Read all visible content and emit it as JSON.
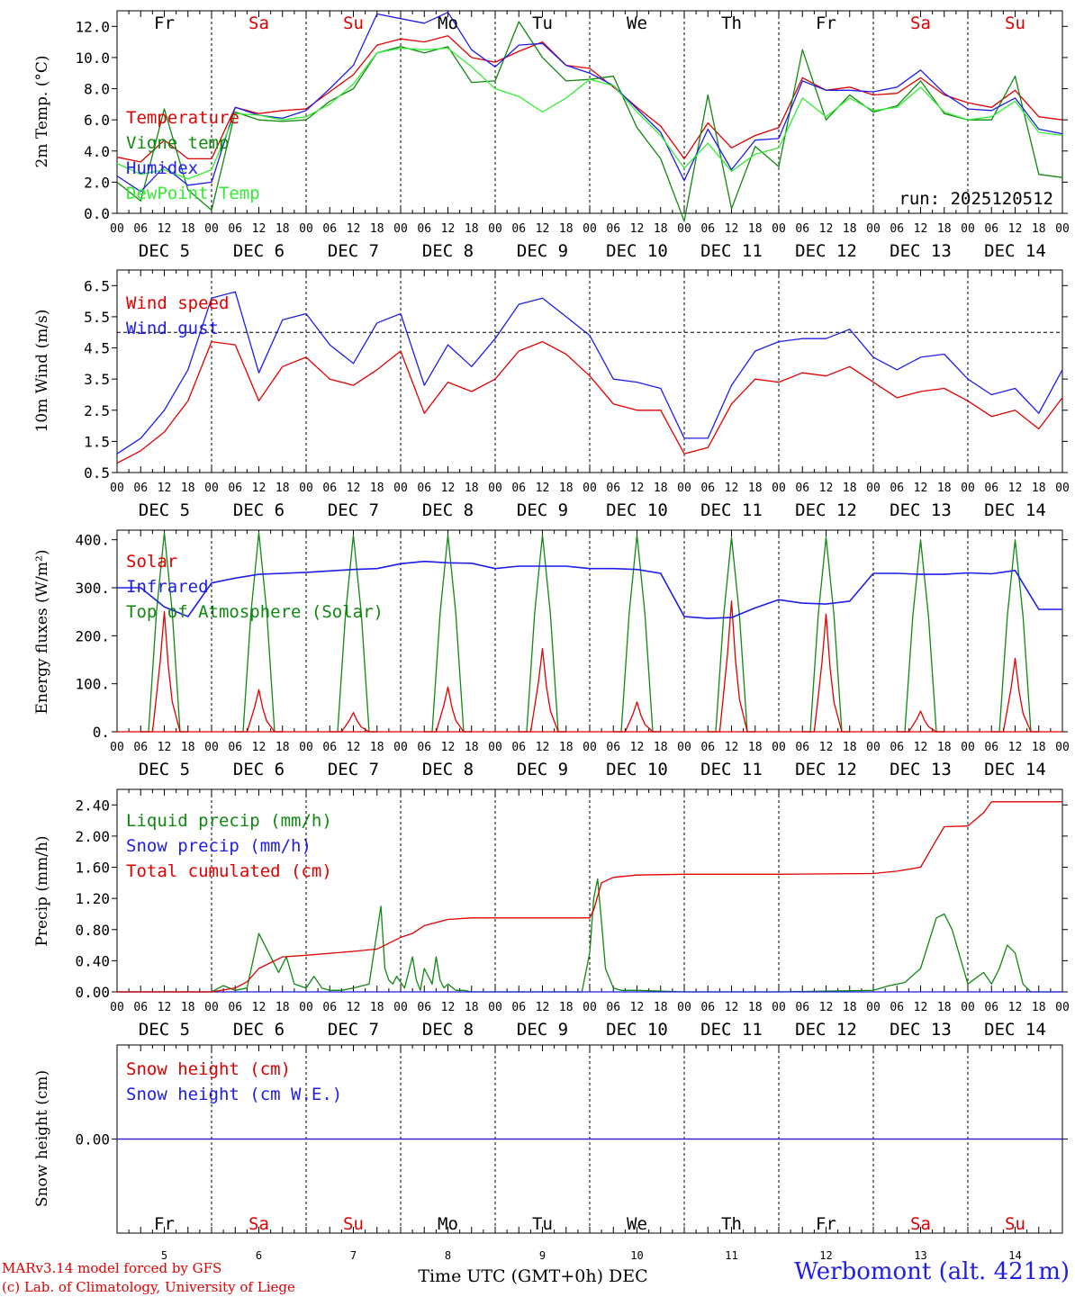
{
  "app": {
    "days": [
      "Fr",
      "Sa",
      "Su",
      "Mo",
      "Tu",
      "We",
      "Th",
      "Fr",
      "Sa",
      "Su"
    ],
    "weekend": [
      false,
      true,
      true,
      false,
      false,
      false,
      false,
      false,
      true,
      true
    ],
    "dates": [
      "DEC  5",
      "DEC  6",
      "DEC  7",
      "DEC  8",
      "DEC  9",
      "DEC 10",
      "DEC 11",
      "DEC 12",
      "DEC 13",
      "DEC 14"
    ],
    "day_numbers": [
      "5",
      "6",
      "7",
      "8",
      "9",
      "10",
      "11",
      "12",
      "13",
      "14"
    ],
    "hour_labels": [
      "00",
      "06",
      "12",
      "18"
    ],
    "end_hour_label": "00",
    "time_axis_title": "Time UTC (GMT+0h) DEC",
    "credit_line1": "MARv3.14 model forced by GFS",
    "credit_line2": "(c) Lab. of Climatology, University of Liege",
    "station": "Werbomont (alt. 421m)",
    "colors": {
      "red": "#e00000",
      "green": "#118811",
      "blue": "#1e1ee8",
      "lightgreen": "#33ee33"
    }
  },
  "chart_data": [
    {
      "type": "line",
      "title": "2m temperature",
      "ylabel": "2m Temp. (°C)",
      "ylim": [
        0,
        13
      ],
      "yticks": [
        0,
        2,
        4,
        6,
        8,
        10,
        12
      ],
      "ytick_labels": [
        "0.0",
        "2.0",
        "4.0",
        "6.0",
        "8.0",
        "10.0",
        "12.0"
      ],
      "annotation": "run: 2025120512",
      "x_hours": [
        0,
        6,
        12,
        18,
        24,
        30,
        36,
        42,
        48,
        54,
        60,
        66,
        72,
        78,
        84,
        90,
        96,
        102,
        108,
        114,
        120,
        126,
        132,
        138,
        144,
        150,
        156,
        162,
        168,
        174,
        180,
        186,
        192,
        198,
        204,
        210,
        216,
        222,
        228,
        234,
        240
      ],
      "series": [
        {
          "name": "Temperature",
          "color": "red",
          "values": [
            3.6,
            3.3,
            4.7,
            3.5,
            3.5,
            6.8,
            6.4,
            6.6,
            6.7,
            7.8,
            8.9,
            10.8,
            11.2,
            11.0,
            11.4,
            10.0,
            9.7,
            10.4,
            11.0,
            9.5,
            9.3,
            8.1,
            6.8,
            5.6,
            3.5,
            5.8,
            4.2,
            5.0,
            5.5,
            8.7,
            7.9,
            8.1,
            7.6,
            7.7,
            8.7,
            7.6,
            7.1,
            6.8,
            7.9,
            6.2,
            6.0
          ]
        },
        {
          "name": "Vigne temp",
          "color": "green",
          "values": [
            2.0,
            0.8,
            6.7,
            1.5,
            0.2,
            6.5,
            6.0,
            5.9,
            6.0,
            7.2,
            8.0,
            10.3,
            10.7,
            10.3,
            10.7,
            8.4,
            8.5,
            12.3,
            10.0,
            8.5,
            8.6,
            8.8,
            5.5,
            3.5,
            -0.5,
            7.6,
            0.3,
            4.3,
            3.0,
            10.5,
            6.0,
            7.6,
            6.5,
            6.9,
            8.5,
            6.4,
            6.0,
            6.0,
            8.8,
            2.5,
            2.3
          ]
        },
        {
          "name": "Humidex",
          "color": "blue",
          "values": [
            2.4,
            1.4,
            3.0,
            1.8,
            2.0,
            6.8,
            6.3,
            6.1,
            6.6,
            8.0,
            9.5,
            12.8,
            12.5,
            12.2,
            12.9,
            10.5,
            9.4,
            10.8,
            10.9,
            9.5,
            9.0,
            8.2,
            6.7,
            5.2,
            2.1,
            5.4,
            2.8,
            4.7,
            4.8,
            8.5,
            7.9,
            7.9,
            7.8,
            8.1,
            9.2,
            7.7,
            6.7,
            6.6,
            7.4,
            5.4,
            5.1
          ]
        },
        {
          "name": "DewPoint Temp",
          "color": "lightgreen",
          "values": [
            3.2,
            2.5,
            2.8,
            2.2,
            2.8,
            6.4,
            6.3,
            6.0,
            6.2,
            7.0,
            8.3,
            10.3,
            10.6,
            10.5,
            10.6,
            9.4,
            8.0,
            7.5,
            6.5,
            7.4,
            8.6,
            8.2,
            6.5,
            5.0,
            2.9,
            4.5,
            2.7,
            3.8,
            4.2,
            7.4,
            6.2,
            7.4,
            6.6,
            6.8,
            8.1,
            6.5,
            6.0,
            6.2,
            7.2,
            5.2,
            5.0
          ]
        }
      ]
    },
    {
      "type": "line",
      "title": "10m wind",
      "ylabel": "10m Wind (m/s)",
      "ylim": [
        0.5,
        7.0
      ],
      "yticks": [
        0.5,
        1.5,
        2.5,
        3.5,
        4.5,
        5.5,
        6.5
      ],
      "ytick_labels": [
        "0.5",
        "1.5",
        "2.5",
        "3.5",
        "4.5",
        "5.5",
        "6.5"
      ],
      "reference_line": 5.0,
      "x_hours": [
        0,
        6,
        12,
        18,
        24,
        30,
        36,
        42,
        48,
        54,
        60,
        66,
        72,
        78,
        84,
        90,
        96,
        102,
        108,
        114,
        120,
        126,
        132,
        138,
        144,
        150,
        156,
        162,
        168,
        174,
        180,
        186,
        192,
        198,
        204,
        210,
        216,
        222,
        228,
        234,
        240
      ],
      "series": [
        {
          "name": "Wind speed",
          "color": "red",
          "values": [
            0.8,
            1.2,
            1.8,
            2.8,
            4.7,
            4.6,
            2.8,
            3.9,
            4.2,
            3.5,
            3.3,
            3.8,
            4.4,
            2.4,
            3.4,
            3.1,
            3.5,
            4.4,
            4.7,
            4.3,
            3.6,
            2.7,
            2.5,
            2.5,
            1.1,
            1.3,
            2.7,
            3.5,
            3.4,
            3.7,
            3.6,
            3.9,
            3.4,
            2.9,
            3.1,
            3.2,
            2.8,
            2.3,
            2.5,
            1.9,
            2.9
          ]
        },
        {
          "name": "Wind gust",
          "color": "blue",
          "values": [
            1.1,
            1.6,
            2.5,
            3.8,
            6.1,
            6.3,
            3.7,
            5.4,
            5.6,
            4.6,
            4.0,
            5.3,
            5.6,
            3.3,
            4.6,
            3.9,
            4.8,
            5.9,
            6.1,
            5.5,
            4.9,
            3.5,
            3.4,
            3.2,
            1.6,
            1.6,
            3.3,
            4.4,
            4.7,
            4.8,
            4.8,
            5.1,
            4.2,
            3.8,
            4.2,
            4.3,
            3.5,
            3.0,
            3.2,
            2.4,
            3.8
          ]
        }
      ]
    },
    {
      "type": "line",
      "title": "Energy fluxes",
      "ylabel": "Energy fluxes (W/m²)",
      "ylim": [
        0,
        420
      ],
      "yticks": [
        0,
        100,
        200,
        300,
        400
      ],
      "ytick_labels": [
        "0.",
        "100.",
        "200.",
        "300.",
        "400."
      ],
      "series": [
        {
          "name": "Solar",
          "color": "red",
          "peaks": [
            250,
            88,
            40,
            93,
            173,
            62,
            272,
            245,
            43,
            153
          ]
        },
        {
          "name": "Infrared",
          "color": "blue",
          "x_hours": [
            0,
            6,
            12,
            18,
            24,
            30,
            36,
            42,
            48,
            54,
            60,
            66,
            72,
            78,
            84,
            90,
            96,
            102,
            108,
            114,
            120,
            126,
            132,
            138,
            144,
            150,
            156,
            162,
            168,
            174,
            180,
            186,
            192,
            198,
            204,
            210,
            216,
            222,
            228,
            234,
            240
          ],
          "values": [
            300,
            300,
            260,
            240,
            310,
            320,
            328,
            330,
            332,
            335,
            338,
            340,
            350,
            355,
            352,
            351,
            340,
            345,
            345,
            345,
            340,
            340,
            338,
            330,
            240,
            236,
            238,
            258,
            275,
            268,
            266,
            272,
            330,
            330,
            328,
            328,
            331,
            329,
            336,
            255,
            255
          ]
        },
        {
          "name": "Top of Atmosphere (Solar)",
          "color": "green",
          "peaks": [
            415,
            415,
            410,
            410,
            410,
            410,
            405,
            405,
            400,
            400
          ]
        }
      ]
    },
    {
      "type": "line",
      "title": "Precipitation",
      "ylabel": "Precip (mm/h)",
      "ylim": [
        0,
        2.6
      ],
      "yticks": [
        0,
        0.4,
        0.8,
        1.2,
        1.6,
        2.0,
        2.4
      ],
      "ytick_labels": [
        "0.00",
        "0.40",
        "0.80",
        "1.20",
        "1.60",
        "2.00",
        "2.40"
      ],
      "series": [
        {
          "name": "Liquid precip (mm/h)",
          "color": "green",
          "x_hours": [
            0,
            24,
            27,
            30,
            33,
            36,
            38,
            41,
            43,
            45,
            48,
            50,
            52,
            54,
            57,
            60,
            64,
            67,
            68,
            69,
            70,
            71,
            73,
            75,
            76,
            77,
            78,
            80,
            81,
            82,
            83,
            84,
            86,
            88,
            90,
            96,
            118,
            120,
            121,
            122,
            123,
            124,
            126,
            128,
            132,
            144,
            168,
            192,
            196,
            200,
            204,
            208,
            210,
            212,
            216,
            220,
            222,
            224,
            226,
            228,
            230,
            232,
            240
          ],
          "values": [
            0,
            0,
            0.08,
            0.02,
            0.05,
            0.75,
            0.55,
            0.25,
            0.45,
            0.1,
            0.05,
            0.2,
            0.05,
            0.02,
            0.02,
            0.05,
            0.1,
            1.1,
            0.3,
            0.15,
            0.1,
            0.2,
            0.05,
            0.45,
            0.15,
            0.02,
            0.3,
            0.1,
            0.45,
            0.15,
            0.05,
            0.1,
            0.02,
            0.02,
            0,
            0,
            0,
            0.5,
            1.2,
            1.45,
            0.9,
            0.3,
            0.05,
            0.02,
            0.02,
            0,
            0,
            0.02,
            0.08,
            0.12,
            0.3,
            0.95,
            1.0,
            0.8,
            0.1,
            0.25,
            0.1,
            0.3,
            0.6,
            0.5,
            0.1,
            0,
            0
          ]
        },
        {
          "name": "Snow precip (mm/h)",
          "color": "blue",
          "x_hours": [
            0,
            240
          ],
          "values": [
            0,
            0
          ]
        },
        {
          "name": "Total cumulated (cm)",
          "color": "red",
          "x_hours": [
            0,
            24,
            30,
            33,
            36,
            42,
            48,
            60,
            66,
            72,
            75,
            78,
            84,
            90,
            96,
            108,
            120,
            121,
            123,
            126,
            132,
            144,
            168,
            192,
            198,
            204,
            208,
            210,
            216,
            220,
            222,
            240
          ],
          "values": [
            0,
            0,
            0.05,
            0.13,
            0.3,
            0.45,
            0.47,
            0.52,
            0.55,
            0.7,
            0.75,
            0.85,
            0.93,
            0.95,
            0.95,
            0.95,
            0.95,
            1.05,
            1.4,
            1.47,
            1.5,
            1.51,
            1.51,
            1.52,
            1.55,
            1.6,
            1.95,
            2.12,
            2.13,
            2.3,
            2.44,
            2.44
          ]
        }
      ]
    },
    {
      "type": "line",
      "title": "Snow height",
      "ylabel": "Snow height (cm)",
      "ylim": [
        -1,
        1
      ],
      "yticks": [
        0
      ],
      "ytick_labels": [
        "0.00"
      ],
      "series": [
        {
          "name": "Snow height (cm)",
          "color": "red",
          "x_hours": [
            0,
            240
          ],
          "values": [
            0,
            0
          ]
        },
        {
          "name": "Snow height (cm W.E.)",
          "color": "blue",
          "x_hours": [
            0,
            240
          ],
          "values": [
            0,
            0
          ]
        }
      ]
    }
  ]
}
